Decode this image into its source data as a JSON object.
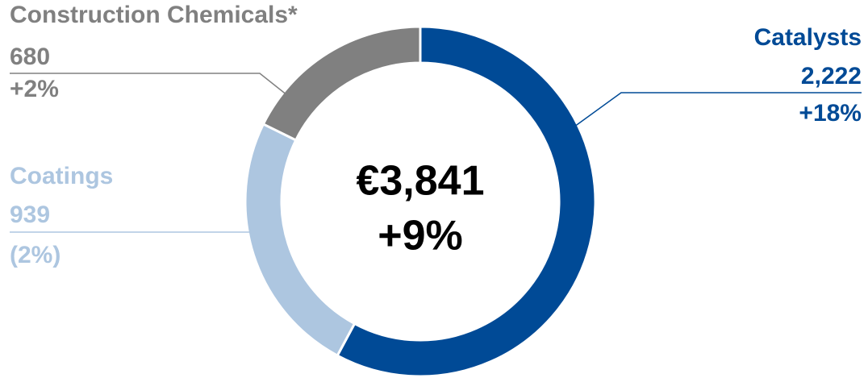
{
  "chart_data": {
    "type": "pie",
    "donut": true,
    "categories": [
      "Catalysts",
      "Coatings",
      "Construction Chemicals*"
    ],
    "values": [
      2222,
      939,
      680
    ],
    "value_labels": [
      "2,222",
      "939",
      "680"
    ],
    "changes": [
      "+18%",
      "(2%)",
      "+2%"
    ],
    "colors": [
      "#004a96",
      "#adc6e0",
      "#808080"
    ],
    "center_label": "€3,841",
    "center_sublabel": "+9%"
  }
}
